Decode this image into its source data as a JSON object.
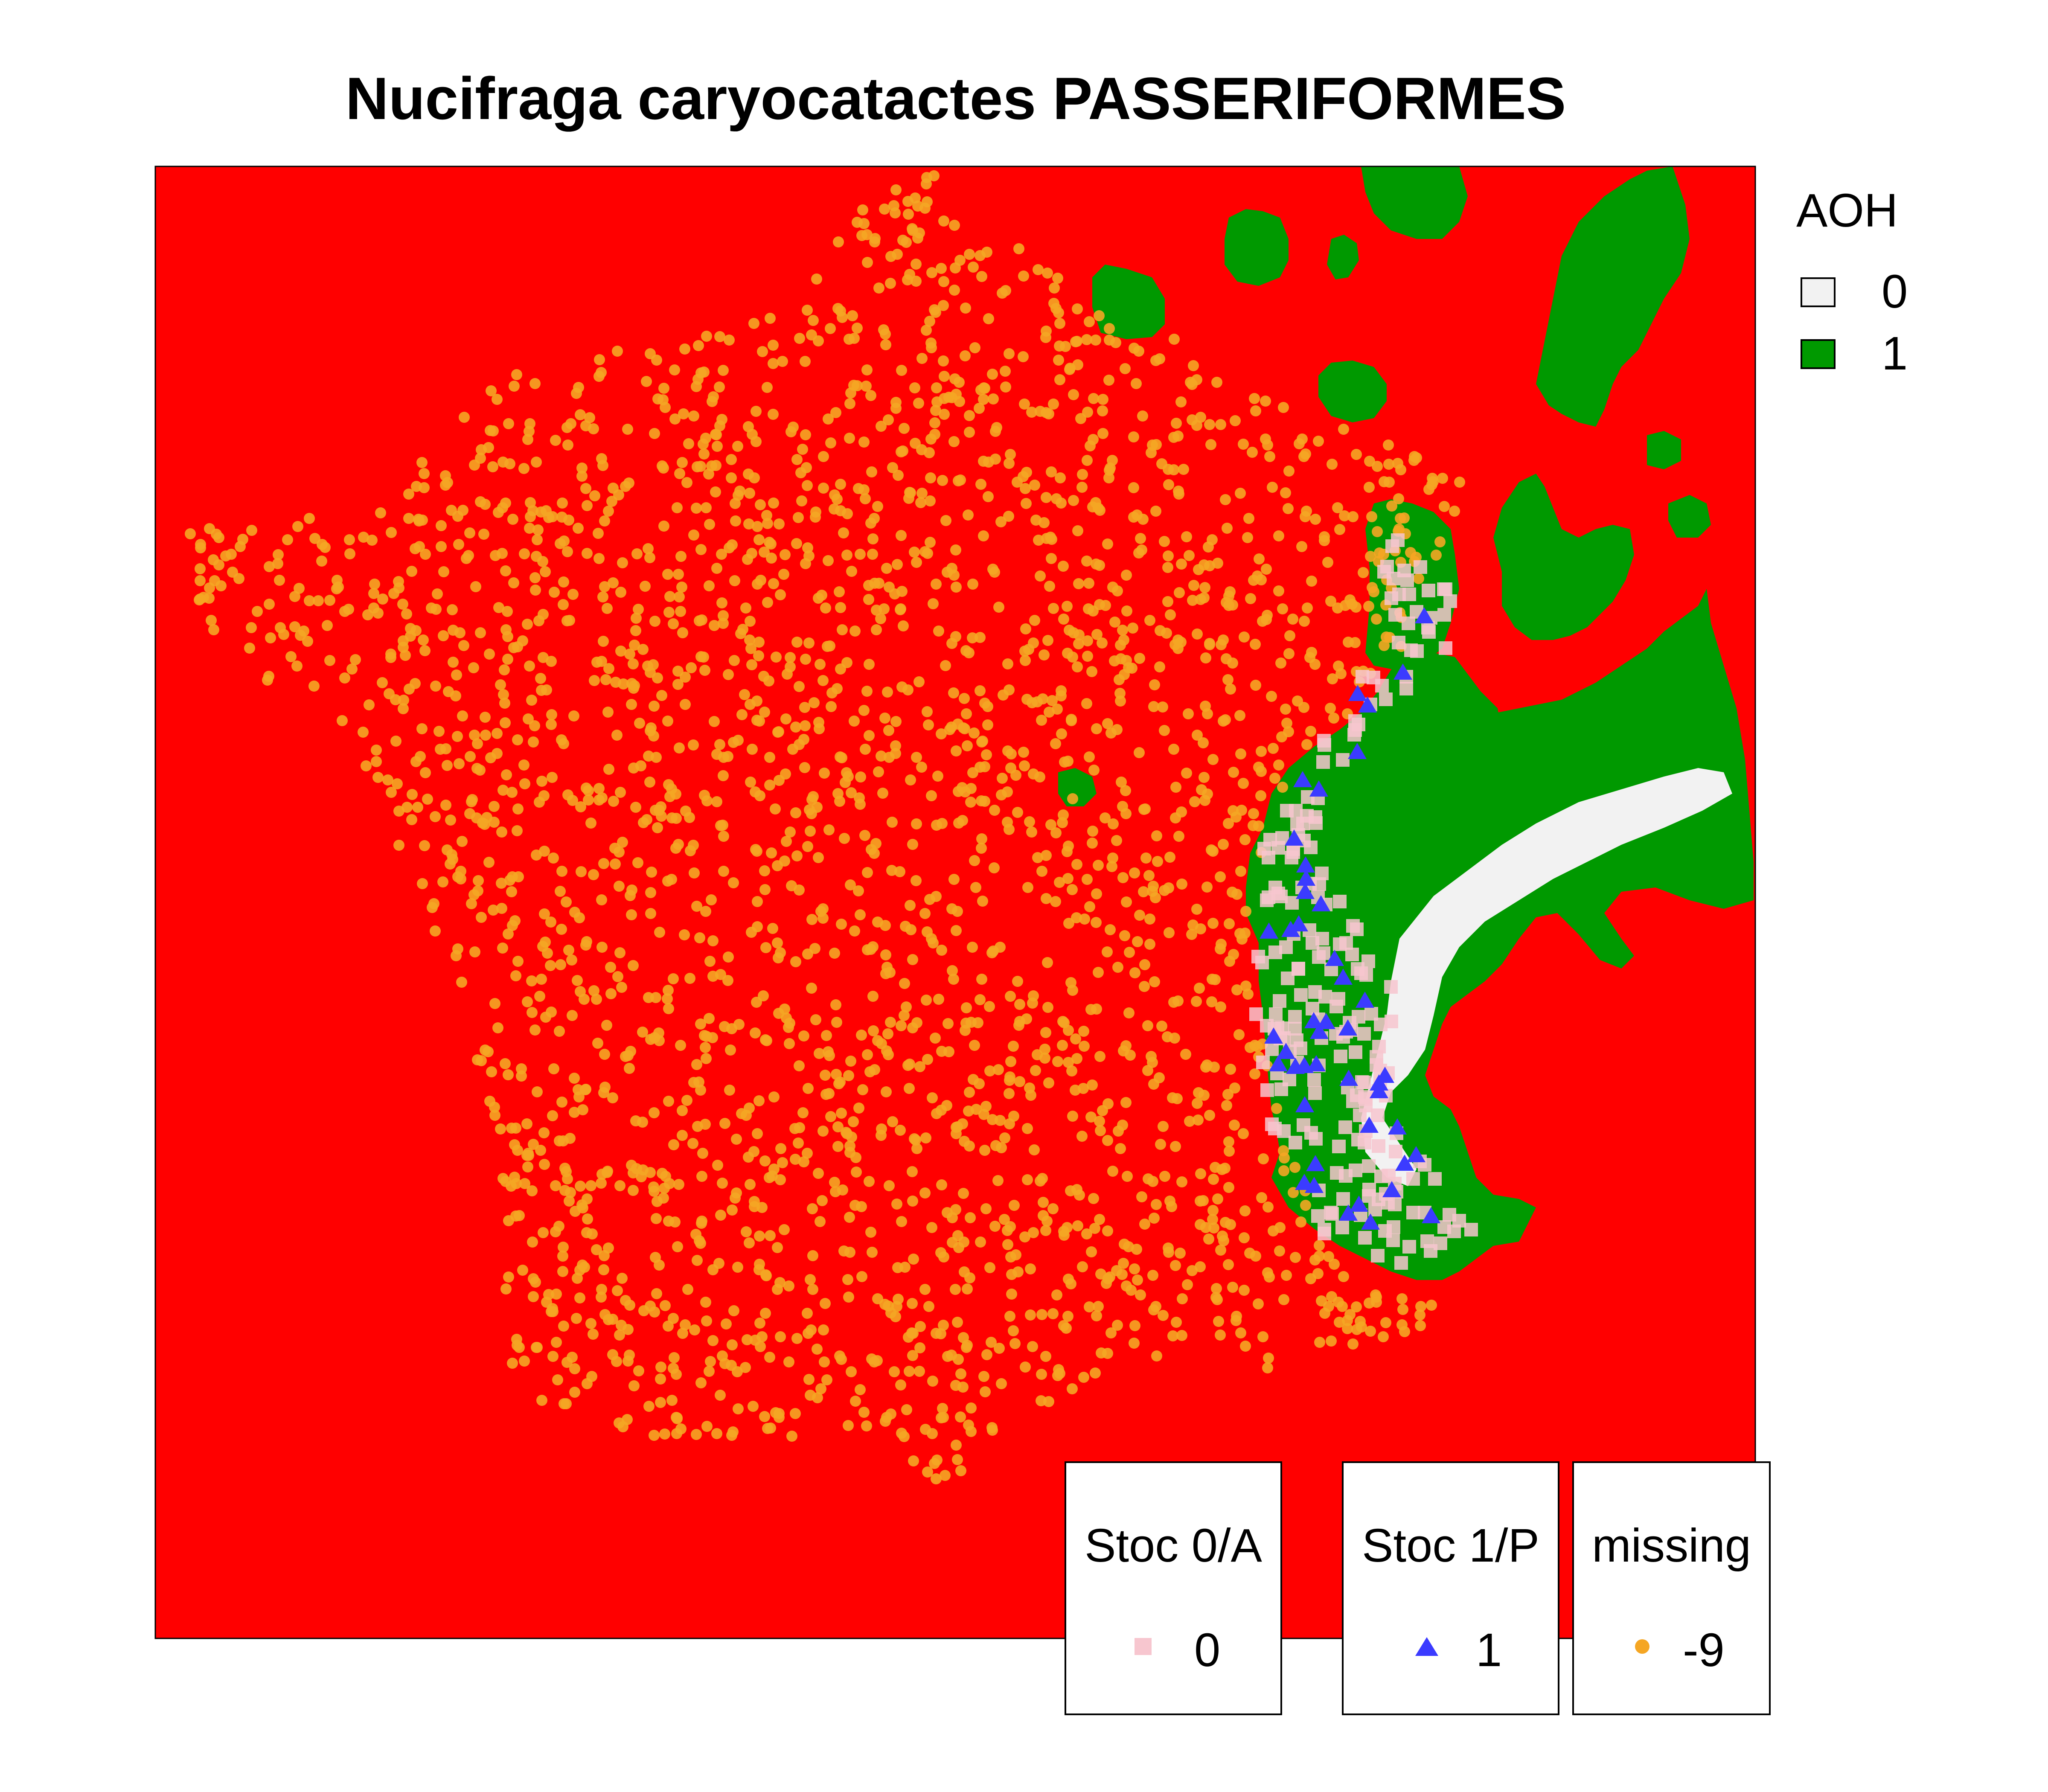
{
  "title": "Nucifraga caryocatactes PASSERIFORMES",
  "colors": {
    "background_red": "#ff0000",
    "habitat_green": "#009900",
    "unsuitable_white": "#f2f2f2",
    "missing_orange": "#f5a623",
    "stoc0_pink": "#f7c6cf",
    "stoc1_blue": "#3b3bff"
  },
  "aoh_legend": {
    "title": "AOH",
    "items": [
      {
        "label": "0",
        "color": "#f2f2f2"
      },
      {
        "label": "1",
        "color": "#009900"
      }
    ]
  },
  "point_legends": [
    {
      "title": "Stoc 0/A",
      "label": "0",
      "symbol": "square",
      "color": "#f7c6cf"
    },
    {
      "title": "Stoc 1/P",
      "label": "1",
      "symbol": "triangle",
      "color": "#3b3bff"
    },
    {
      "title": "missing",
      "label": "-9",
      "symbol": "circle",
      "color": "#f5a623"
    }
  ]
}
